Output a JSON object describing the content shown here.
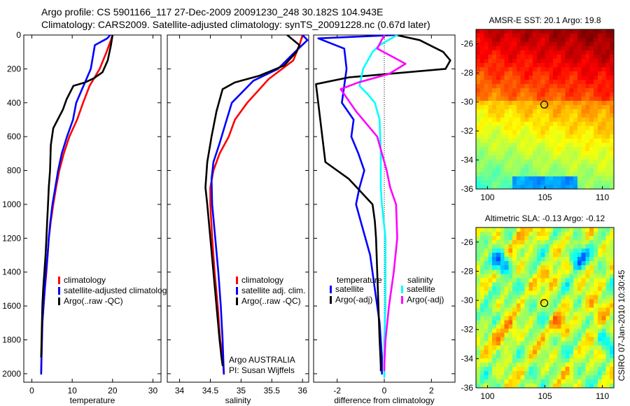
{
  "header": {
    "line1": "Argo profile: CS 5901166_117 27-Dec-2009 20091230_248 30.182S 104.943E",
    "line2": "Climatology: CARS2009. Satellite-adjusted climatology: synTS_20091228.nc (0.67d later)"
  },
  "colors": {
    "climatology": "#ff0000",
    "satellite": "#0000ff",
    "argo": "#000000",
    "sat_salinity": "#00ffff",
    "argo_salinity_adj": "#ff00ff"
  },
  "chart_data": [
    {
      "type": "line",
      "id": "temperature",
      "xlabel": "temperature",
      "ylabel": "",
      "xlim": [
        -2,
        32
      ],
      "ylim": [
        0,
        2050
      ],
      "y_reversed": true,
      "xticks": [
        0,
        10,
        20,
        30
      ],
      "xtick_labels": [
        "0",
        "10",
        "20",
        "30"
      ],
      "yticks": [
        0,
        200,
        400,
        600,
        800,
        1000,
        1200,
        1400,
        1600,
        1800,
        2000
      ],
      "ytick_labels": [
        "0",
        "200",
        "400",
        "600",
        "800",
        "1000",
        "1200",
        "1400",
        "1600",
        "1800",
        "2000"
      ],
      "legend": [
        "climatology",
        "satellite-adjusted climatolog",
        "Argo(..raw -QC)"
      ],
      "series": [
        {
          "name": "climatology",
          "color": "#ff0000",
          "x": [
            20.0,
            19.6,
            18.5,
            16.8,
            14.3,
            12.7,
            11.2,
            9.3,
            7.9,
            6.8,
            6.0,
            5.3,
            4.7,
            4.2,
            3.9,
            3.6,
            3.2,
            2.9,
            2.6,
            2.4,
            2.3
          ],
          "y": [
            0,
            30,
            100,
            200,
            300,
            400,
            500,
            600,
            700,
            800,
            900,
            1000,
            1100,
            1200,
            1300,
            1400,
            1500,
            1600,
            1700,
            1850,
            2000
          ]
        },
        {
          "name": "satellite-adjusted climatology",
          "color": "#0000ff",
          "x": [
            19.4,
            18.7,
            15.6,
            14.6,
            12.8,
            11.0,
            10.2,
            8.7,
            7.4,
            6.5,
            5.8,
            5.1,
            4.6,
            4.2,
            3.9,
            3.5,
            3.2,
            2.9,
            2.6,
            2.3
          ],
          "y": [
            0,
            20,
            60,
            200,
            300,
            400,
            500,
            600,
            700,
            800,
            900,
            1000,
            1100,
            1200,
            1300,
            1400,
            1500,
            1600,
            1700,
            2000
          ]
        },
        {
          "name": "Argo(..raw -QC)",
          "color": "#000000",
          "x": [
            20.0,
            19.6,
            18.8,
            17.5,
            15.4,
            13.2,
            10.3,
            8.6,
            7.7,
            5.3,
            4.7,
            4.5,
            4.2,
            4.0,
            3.8,
            3.6,
            3.4,
            3.1,
            2.8,
            2.6,
            2.4,
            2.3
          ],
          "y": [
            0,
            60,
            150,
            220,
            255,
            280,
            300,
            380,
            440,
            550,
            650,
            800,
            900,
            1000,
            1100,
            1200,
            1300,
            1400,
            1500,
            1600,
            1800,
            1900
          ]
        }
      ]
    },
    {
      "type": "line",
      "id": "salinity",
      "xlabel": "salinity",
      "xlim": [
        33.8,
        36.1
      ],
      "ylim": [
        0,
        2050
      ],
      "y_reversed": true,
      "xticks": [
        34,
        34.5,
        35,
        35.5,
        36
      ],
      "xtick_labels": [
        "34",
        "34.5",
        "35",
        "35.5",
        "36"
      ],
      "legend": [
        "climatology",
        "satellite adj. clim.",
        "Argo(..raw -QC)"
      ],
      "annotations": [
        "Argo AUSTRALIA",
        "PI: Susan Wijffels"
      ],
      "series": [
        {
          "name": "climatology",
          "color": "#ff0000",
          "x": [
            36.0,
            35.95,
            35.85,
            35.45,
            35.1,
            34.9,
            34.8,
            34.65,
            34.55,
            34.5,
            34.5,
            34.53,
            34.57,
            34.62,
            34.66,
            34.7,
            34.72
          ],
          "y": [
            0,
            60,
            150,
            260,
            400,
            500,
            600,
            700,
            800,
            900,
            1000,
            1200,
            1400,
            1600,
            1800,
            1900,
            2000
          ]
        },
        {
          "name": "satellite adj. clim.",
          "color": "#0000ff",
          "x": [
            36.0,
            36.08,
            35.85,
            35.6,
            35.2,
            34.85,
            34.75,
            34.65,
            34.55,
            34.52,
            34.53,
            34.58,
            34.63,
            34.67,
            34.7,
            34.72
          ],
          "y": [
            0,
            30,
            110,
            200,
            270,
            400,
            520,
            640,
            750,
            850,
            1000,
            1200,
            1400,
            1600,
            1800,
            2000
          ]
        },
        {
          "name": "Argo(..raw -QC)",
          "color": "#000000",
          "x": [
            35.75,
            35.85,
            35.95,
            35.9,
            35.7,
            35.3,
            34.9,
            34.7,
            34.6,
            34.52,
            34.45,
            34.42,
            34.45,
            34.5,
            34.55,
            34.6,
            34.65,
            34.68,
            34.7
          ],
          "y": [
            0,
            30,
            60,
            100,
            180,
            240,
            280,
            320,
            450,
            600,
            750,
            900,
            1000,
            1200,
            1400,
            1600,
            1800,
            1900,
            1950
          ]
        }
      ]
    },
    {
      "type": "line",
      "id": "difference",
      "xlabel": "difference from climatology",
      "xlim": [
        -3,
        3
      ],
      "ylim": [
        0,
        2050
      ],
      "y_reversed": true,
      "xticks": [
        -2,
        0,
        2
      ],
      "xtick_labels": [
        "-2",
        "0",
        "2"
      ],
      "legend_title_temperature": "temperature",
      "legend_title_salinity": "salinity",
      "legend": [
        "satellite",
        "Argo(-adj)",
        "satellite",
        "Argo(-adj)"
      ],
      "series": [
        {
          "name": "temperature satellite",
          "color": "#0000ff",
          "x": [
            0.5,
            -2.8,
            -1.7,
            -1.6,
            -1.8,
            -1.3,
            -1.4,
            -1.1,
            -0.85,
            -1.05,
            -1.2,
            -1.0,
            -0.6,
            -0.4,
            -0.2,
            -0.1,
            -0.1
          ],
          "y": [
            0,
            20,
            80,
            200,
            400,
            500,
            600,
            700,
            800,
            900,
            1000,
            1100,
            1300,
            1500,
            1700,
            1900,
            2000
          ]
        },
        {
          "name": "temperature Argo(-adj)",
          "color": "#000000",
          "x": [
            0.5,
            1.5,
            2.5,
            2.8,
            2.6,
            -1.5,
            -2.9,
            -2.5,
            -1.5,
            -0.5,
            -0.4,
            -0.35,
            -0.3,
            -0.25,
            -0.2,
            -0.15,
            -0.15
          ],
          "y": [
            0,
            30,
            100,
            150,
            200,
            250,
            290,
            750,
            850,
            1000,
            1100,
            1200,
            1400,
            1600,
            1800,
            1950,
            1980
          ]
        },
        {
          "name": "salinity satellite",
          "color": "#00ffff",
          "x": [
            0.55,
            -0.2,
            -0.5,
            -0.9,
            -1.05,
            -0.7,
            -0.4,
            -0.2,
            -0.15,
            -0.15,
            -0.1,
            0.05,
            0.05,
            0.05,
            0.0,
            0.0,
            0.0
          ],
          "y": [
            0,
            60,
            100,
            200,
            300,
            350,
            400,
            500,
            700,
            900,
            1000,
            1200,
            1400,
            1600,
            1800,
            2000,
            2020
          ]
        },
        {
          "name": "salinity Argo(-adj)",
          "color": "#ff00ff",
          "x": [
            0.0,
            -0.3,
            0.9,
            0.2,
            -1.1,
            -1.85,
            -1.2,
            -0.3,
            0.1,
            0.25,
            0.5,
            0.55,
            0.4,
            0.2,
            0.05,
            0.0,
            0.0
          ],
          "y": [
            0,
            80,
            170,
            230,
            280,
            320,
            450,
            600,
            800,
            900,
            1000,
            1200,
            1400,
            1600,
            1800,
            1950,
            1980
          ]
        }
      ]
    },
    {
      "type": "heatmap",
      "id": "sst-map",
      "title": "AMSR-E SST: 20.1  Argo: 19.8",
      "xlim": [
        99,
        111
      ],
      "ylim": [
        -36,
        -25
      ],
      "xticks": [
        100,
        105,
        110
      ],
      "xtick_labels": [
        "100",
        "105",
        "110"
      ],
      "yticks": [
        -26,
        -28,
        -30,
        -32,
        -34,
        -36
      ],
      "ytick_labels": [
        "-26",
        "-28",
        "-30",
        "-32",
        "-34",
        "-36"
      ],
      "marker": {
        "lon": 104.943,
        "lat": -30.182
      }
    },
    {
      "type": "heatmap",
      "id": "sla-map",
      "title": "Altimetric SLA: -0.13  Argo: -0.12",
      "xlim": [
        99,
        111
      ],
      "ylim": [
        -36,
        -25
      ],
      "xticks": [
        100,
        105,
        110
      ],
      "xtick_labels": [
        "100",
        "105",
        "110"
      ],
      "yticks": [
        -26,
        -28,
        -30,
        -32,
        -34,
        -36
      ],
      "ytick_labels": [
        "-26",
        "-28",
        "-30",
        "-32",
        "-34",
        "-36"
      ],
      "marker": {
        "lon": 104.943,
        "lat": -30.182
      },
      "side_label": "CSIRO 07-Jan-2010 10:30:45"
    }
  ]
}
